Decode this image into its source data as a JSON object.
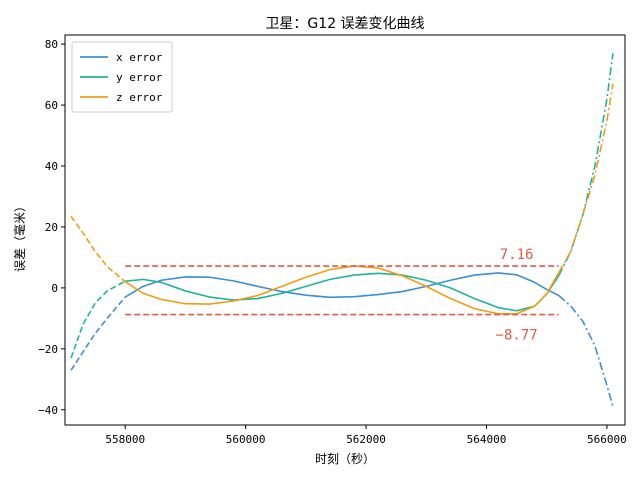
{
  "chart_data": {
    "type": "line",
    "title": "卫星：G12 误差变化曲线",
    "xlabel": "时刻（秒）",
    "ylabel": "误差（毫米）",
    "xlim": [
      557000,
      566300
    ],
    "ylim": [
      -45,
      83
    ],
    "x_ticks": [
      558000,
      560000,
      562000,
      564000,
      566000
    ],
    "x_tick_labels": [
      "558000",
      "560000",
      "562000",
      "564000",
      "566000"
    ],
    "y_ticks": [
      -40,
      -20,
      0,
      20,
      40,
      60,
      80
    ],
    "y_tick_labels": [
      "−40",
      "−20",
      "0",
      "20",
      "40",
      "60",
      "80"
    ],
    "grid": false,
    "legend_position": "top-left",
    "fit_range": [
      558000,
      565200
    ],
    "series": [
      {
        "name": "x error",
        "color": "#3b8fd4",
        "x": [
          557100,
          557300,
          557500,
          557700,
          558000,
          558300,
          558600,
          559000,
          559400,
          559800,
          560200,
          560600,
          561000,
          561400,
          561800,
          562200,
          562600,
          563000,
          563400,
          563800,
          564200,
          564500,
          564800,
          565000,
          565200,
          565400,
          565600,
          565800,
          566000,
          566100
        ],
        "y": [
          -27,
          -21,
          -15,
          -10,
          -3,
          0.5,
          2.5,
          3.6,
          3.5,
          2.3,
          0.5,
          -1.2,
          -2.4,
          -3.1,
          -2.9,
          -2.2,
          -1.2,
          0.5,
          2.5,
          4.2,
          4.9,
          4.3,
          1.8,
          -0.5,
          -2.5,
          -6,
          -11,
          -19,
          -32,
          -39
        ]
      },
      {
        "name": "y error",
        "color": "#1fb49a",
        "x": [
          557100,
          557300,
          557500,
          557700,
          558000,
          558300,
          558600,
          559000,
          559400,
          559800,
          560200,
          560600,
          561000,
          561400,
          561800,
          562200,
          562600,
          563000,
          563400,
          563800,
          564200,
          564500,
          564800,
          565000,
          565200,
          565400,
          565600,
          565800,
          566000,
          566100
        ],
        "y": [
          -23,
          -12,
          -5,
          -1,
          2.2,
          2.8,
          1.8,
          -1,
          -3,
          -4,
          -3.5,
          -1.8,
          0.5,
          2.8,
          4.2,
          4.8,
          4.2,
          2.5,
          0,
          -3.5,
          -6.5,
          -7.5,
          -6,
          -2,
          4,
          12,
          24,
          40,
          62,
          77
        ]
      },
      {
        "name": "z error",
        "color": "#f39c12",
        "x": [
          557100,
          557300,
          557500,
          557700,
          558000,
          558300,
          558600,
          559000,
          559400,
          559800,
          560200,
          560600,
          561000,
          561400,
          561800,
          562200,
          562600,
          563000,
          563400,
          563800,
          564200,
          564500,
          564800,
          565000,
          565200,
          565400,
          565600,
          565800,
          566000,
          566100
        ],
        "y": [
          23.5,
          18,
          12,
          7,
          2,
          -1.8,
          -3.8,
          -5.2,
          -5.3,
          -4.3,
          -2.5,
          0.5,
          3.5,
          6,
          7.2,
          6.5,
          4,
          0.5,
          -3.5,
          -6.8,
          -8.5,
          -8.5,
          -6,
          -2,
          5,
          12,
          24,
          37,
          55,
          67
        ]
      }
    ],
    "reference_lines": [
      {
        "value": 7.16,
        "label": "7.16",
        "color": "#e05a47",
        "x_range": [
          558000,
          565200
        ]
      },
      {
        "value": -8.77,
        "label": "−8.77",
        "color": "#e05a47",
        "x_range": [
          558000,
          565200
        ]
      }
    ]
  }
}
